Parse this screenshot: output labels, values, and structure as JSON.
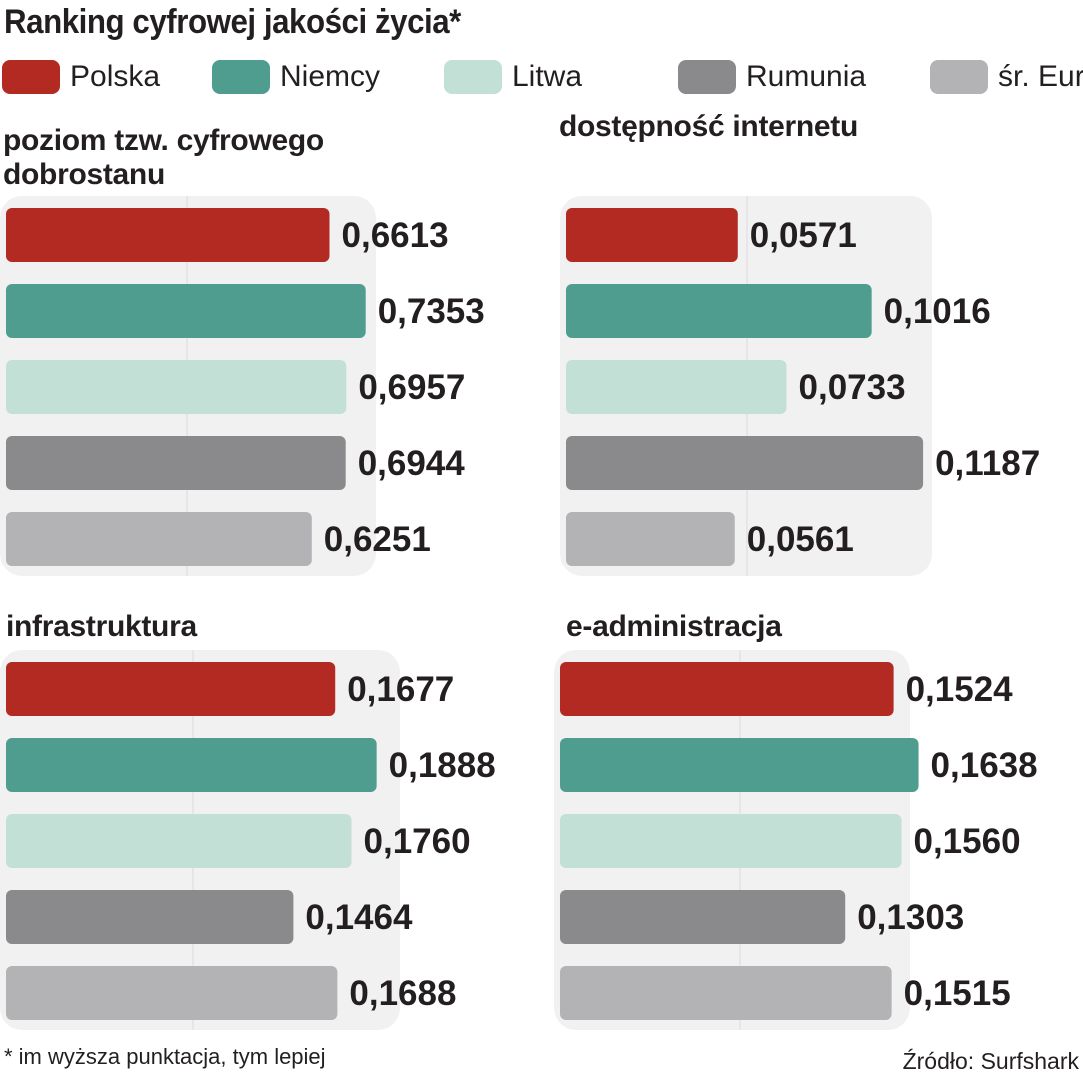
{
  "title": "Ranking cyfrowej jakości życia*",
  "legend": [
    {
      "label": "Polska",
      "color": "#b22a22"
    },
    {
      "label": "Niemcy",
      "color": "#4f9d8f"
    },
    {
      "label": "Litwa",
      "color": "#c3e0d7"
    },
    {
      "label": "Rumunia",
      "color": "#8a8a8c"
    },
    {
      "label": "śr. Eur.",
      "color": "#b3b3b5"
    }
  ],
  "footnote": "* im wyższa punktacja, tym lepiej",
  "source": "Źródło: Surfshark",
  "chart_data": [
    {
      "type": "bar",
      "title_lines": [
        "poziom tzw. cyfrowego",
        "dobrostanu"
      ],
      "categories": [
        "Polska",
        "Niemcy",
        "Litwa",
        "Rumunia",
        "śr. Eur."
      ],
      "values": [
        0.6613,
        0.7353,
        0.6957,
        0.6944,
        0.6251
      ],
      "labels": [
        "0,6613",
        "0,7353",
        "0,6957",
        "0,6944",
        "0,6251"
      ],
      "colors": [
        "#b22a22",
        "#4f9d8f",
        "#c3e0d7",
        "#8a8a8c",
        "#b3b3b5"
      ],
      "xlim": [
        0,
        0.74
      ],
      "orientation": "horizontal"
    },
    {
      "type": "bar",
      "title_lines": [
        "dostępność internetu"
      ],
      "categories": [
        "Polska",
        "Niemcy",
        "Litwa",
        "Rumunia",
        "śr. Eur."
      ],
      "values": [
        0.0571,
        0.1016,
        0.0733,
        0.1187,
        0.0561
      ],
      "labels": [
        "0,0571",
        "0,1016",
        "0,0733",
        "0,1187",
        "0,0561"
      ],
      "colors": [
        "#b22a22",
        "#4f9d8f",
        "#c3e0d7",
        "#8a8a8c",
        "#b3b3b5"
      ],
      "xlim": [
        0,
        0.12
      ],
      "orientation": "horizontal"
    },
    {
      "type": "bar",
      "title_lines": [
        "infrastruktura"
      ],
      "categories": [
        "Polska",
        "Niemcy",
        "Litwa",
        "Rumunia",
        "śr. Eur."
      ],
      "values": [
        0.1677,
        0.1888,
        0.176,
        0.1464,
        0.1688
      ],
      "labels": [
        "0,1677",
        "0,1888",
        "0,1760",
        "0,1464",
        "0,1688"
      ],
      "colors": [
        "#b22a22",
        "#4f9d8f",
        "#c3e0d7",
        "#8a8a8c",
        "#b3b3b5"
      ],
      "xlim": [
        0,
        0.19
      ],
      "orientation": "horizontal"
    },
    {
      "type": "bar",
      "title_lines": [
        "e-administracja"
      ],
      "categories": [
        "Polska",
        "Niemcy",
        "Litwa",
        "Rumunia",
        "śr. Eur."
      ],
      "values": [
        0.1524,
        0.1638,
        0.156,
        0.1303,
        0.1515
      ],
      "labels": [
        "0,1524",
        "0,1638",
        "0,1560",
        "0,1303",
        "0,1515"
      ],
      "colors": [
        "#b22a22",
        "#4f9d8f",
        "#c3e0d7",
        "#8a8a8c",
        "#b3b3b5"
      ],
      "xlim": [
        0,
        0.164
      ],
      "orientation": "horizontal"
    }
  ]
}
